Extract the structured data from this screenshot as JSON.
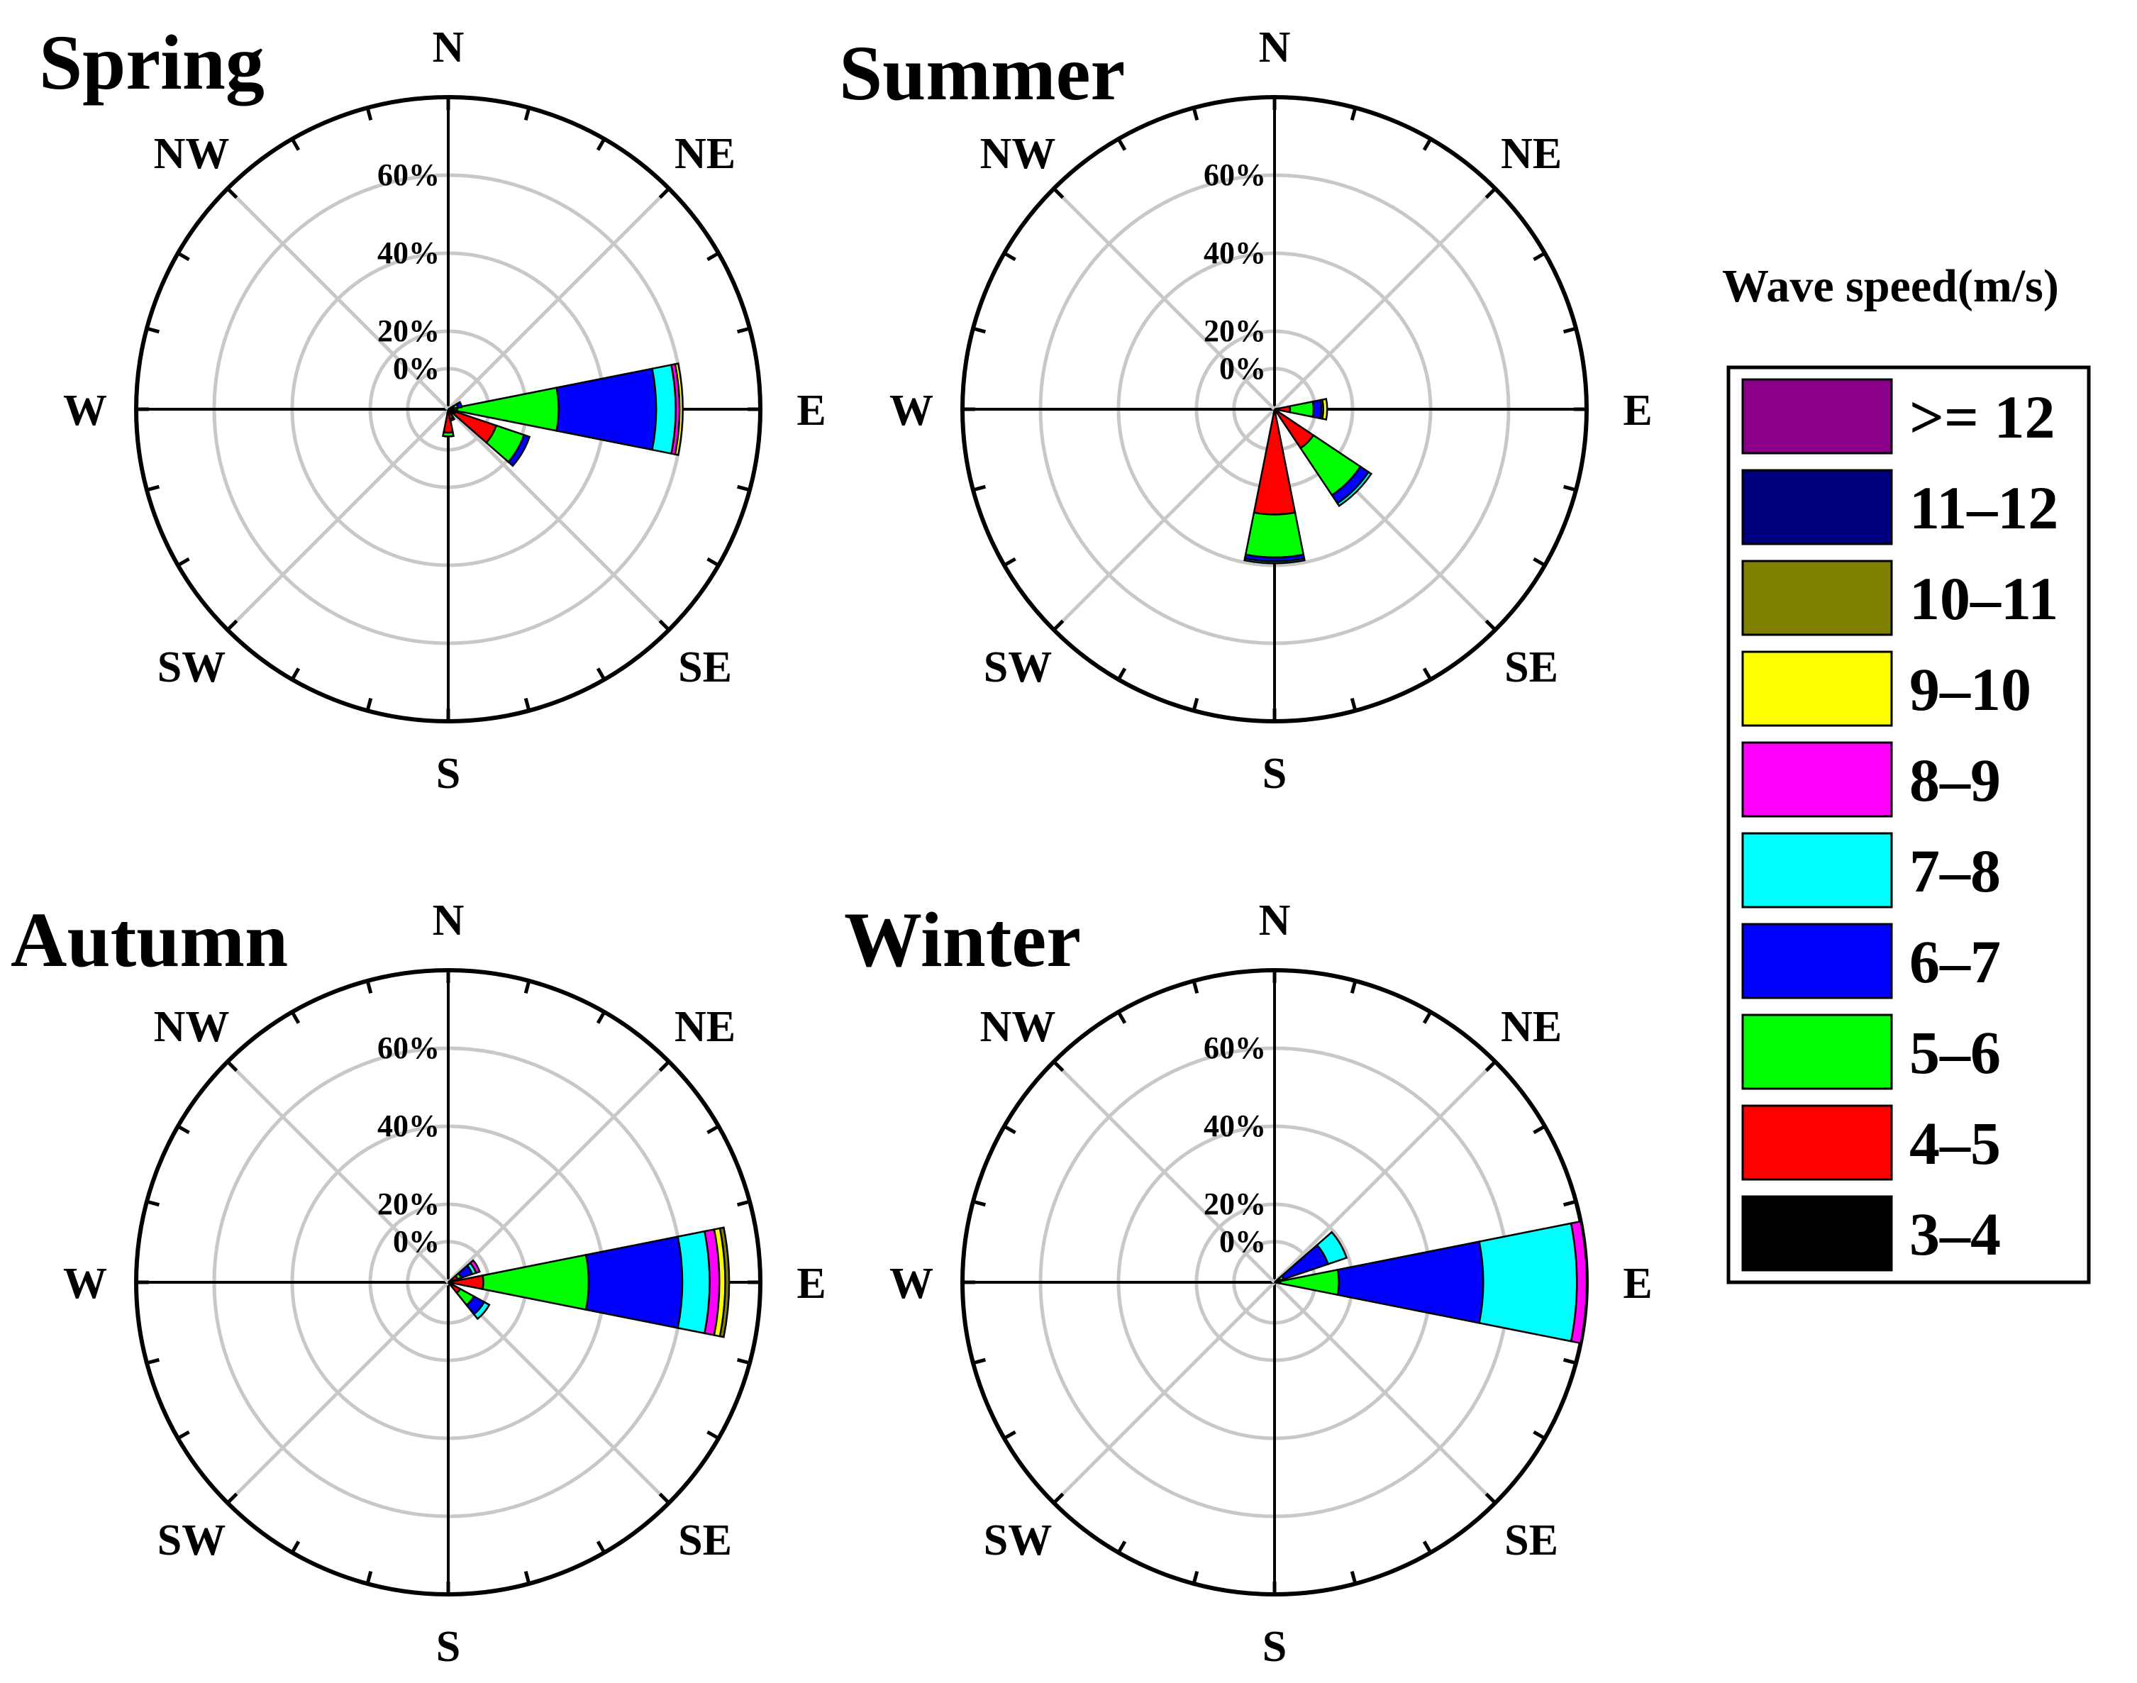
{
  "chart_data": [
    {
      "type": "wind-rose",
      "title": "Spring",
      "directions": [
        "N",
        "NE",
        "E",
        "SE",
        "S",
        "SW",
        "W",
        "NW"
      ],
      "radial_ticks": [
        "0%",
        "20%",
        "40%",
        "60%"
      ],
      "radial_range": [
        0,
        80
      ],
      "sectors": [
        {
          "direction_deg": 90,
          "values": [
            1.5,
            0.8,
            26.0,
            25.0,
            5.0,
            1.0,
            0.8,
            0,
            0,
            0
          ]
        },
        {
          "direction_deg": 70,
          "values": [
            1.0,
            0.5,
            1.0,
            1.0,
            0,
            0,
            0,
            0,
            0,
            0
          ]
        },
        {
          "direction_deg": 120,
          "values": [
            2.0,
            11.0,
            7.5,
            1.5,
            0,
            0,
            0,
            0,
            0,
            0
          ]
        },
        {
          "direction_deg": 180,
          "values": [
            1.0,
            5.0,
            1.0,
            0,
            0,
            0,
            0,
            0,
            0,
            0
          ]
        },
        {
          "direction_deg": 160,
          "values": [
            0.5,
            2.0,
            0.5,
            0,
            0,
            0,
            0,
            0,
            0,
            0
          ]
        }
      ]
    },
    {
      "type": "wind-rose",
      "title": "Summer",
      "directions": [
        "N",
        "NE",
        "E",
        "SE",
        "S",
        "SW",
        "W",
        "NW"
      ],
      "radial_ticks": [
        "0%",
        "20%",
        "40%",
        "60%"
      ],
      "radial_range": [
        0,
        80
      ],
      "sectors": [
        {
          "direction_deg": 180,
          "values": [
            1.0,
            26.0,
            11.0,
            1.0,
            0.5,
            0,
            0,
            0,
            0,
            0
          ]
        },
        {
          "direction_deg": 135,
          "values": [
            1.0,
            11.0,
            14.5,
            2.5,
            0.8,
            0,
            0,
            0,
            0,
            0
          ]
        },
        {
          "direction_deg": 90,
          "values": [
            1.0,
            3.0,
            6.0,
            2.0,
            0.5,
            0,
            1.0,
            0,
            0,
            0
          ]
        }
      ]
    },
    {
      "type": "wind-rose",
      "title": "Autumn",
      "directions": [
        "N",
        "NE",
        "E",
        "SE",
        "S",
        "SW",
        "W",
        "NW"
      ],
      "radial_ticks": [
        "0%",
        "20%",
        "40%",
        "60%"
      ],
      "radial_range": [
        0,
        80
      ],
      "sectors": [
        {
          "direction_deg": 90,
          "values": [
            1.0,
            8.0,
            27.0,
            24.0,
            7.0,
            2.5,
            1.5,
            1.0,
            0,
            0
          ]
        },
        {
          "direction_deg": 60,
          "values": [
            0.5,
            2.0,
            1.0,
            3.0,
            1.0,
            1.0,
            0,
            0,
            0,
            0
          ]
        },
        {
          "direction_deg": 130,
          "values": [
            0.5,
            3.0,
            4.0,
            3.0,
            1.5,
            0,
            0,
            0,
            0,
            0
          ]
        }
      ]
    },
    {
      "type": "wind-rose",
      "title": "Winter",
      "directions": [
        "N",
        "NE",
        "E",
        "SE",
        "S",
        "SW",
        "W",
        "NW"
      ],
      "radial_ticks": [
        "0%",
        "20%",
        "40%",
        "60%"
      ],
      "radial_range": [
        0,
        80
      ],
      "sectors": [
        {
          "direction_deg": 90,
          "values": [
            0.5,
            1.0,
            15.0,
            37.0,
            24.0,
            2.5,
            0,
            0,
            0,
            0
          ]
        },
        {
          "direction_deg": 60,
          "values": [
            0.5,
            1.0,
            1.0,
            12.0,
            5.0,
            0,
            0,
            0,
            0,
            0
          ]
        }
      ]
    }
  ],
  "legend": {
    "title": "Wave speed(m/s)",
    "entries": [
      {
        "label": ">= 12",
        "color": "#8B008B"
      },
      {
        "label": "11–12",
        "color": "#00007F"
      },
      {
        "label": "10–11",
        "color": "#808000"
      },
      {
        "label": "9–10",
        "color": "#FFFF00"
      },
      {
        "label": "8–9",
        "color": "#FF00FF"
      },
      {
        "label": "7–8",
        "color": "#00FFFF"
      },
      {
        "label": "6–7",
        "color": "#0000FF"
      },
      {
        "label": "5–6",
        "color": "#00FF00"
      },
      {
        "label": "4–5",
        "color": "#FF0000"
      },
      {
        "label": "3–4",
        "color": "#000000"
      }
    ]
  },
  "bin_colors_low_to_high": [
    "#000000",
    "#FF0000",
    "#00FF00",
    "#0000FF",
    "#00FFFF",
    "#FF00FF",
    "#FFFF00",
    "#808000",
    "#00007F",
    "#8B008B"
  ]
}
